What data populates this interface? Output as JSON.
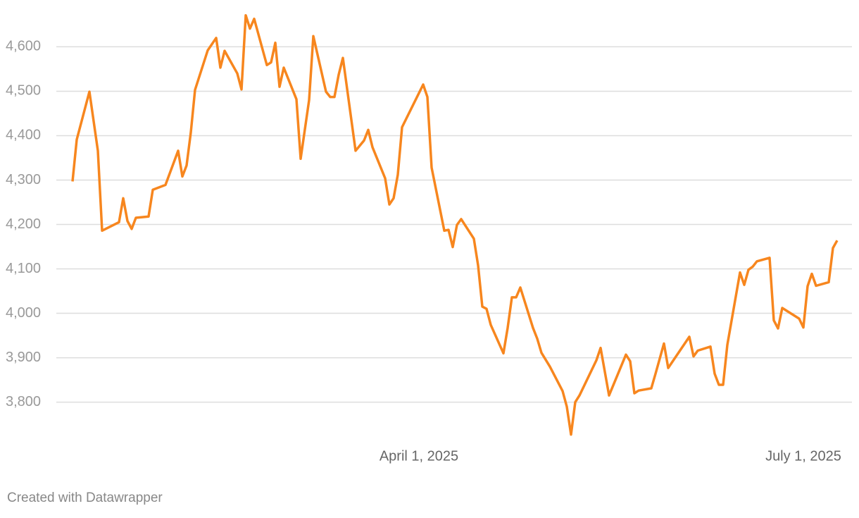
{
  "chart_data": {
    "type": "line",
    "footer": "Created with Datawrapper",
    "color": "#f7861e",
    "grid": true,
    "xlim": [
      "2025-01-07",
      "2025-07-13"
    ],
    "xticks": [
      {
        "value": "2025-04-01",
        "label": "April 1, 2025"
      },
      {
        "value": "2025-07-01",
        "label": "July 1, 2025"
      }
    ],
    "ylim": [
      3720,
      4680
    ],
    "yticks": [
      {
        "value": 3800,
        "label": "3,800"
      },
      {
        "value": 3900,
        "label": "3,900"
      },
      {
        "value": 4000,
        "label": "4,000"
      },
      {
        "value": 4100,
        "label": "4,100"
      },
      {
        "value": 4200,
        "label": "4,200"
      },
      {
        "value": 4300,
        "label": "4,300"
      },
      {
        "value": 4400,
        "label": "4,400"
      },
      {
        "value": 4500,
        "label": "4,500"
      },
      {
        "value": 4600,
        "label": "4,600"
      }
    ],
    "x": [
      "2025-01-09",
      "2025-01-10",
      "2025-01-13",
      "2025-01-15",
      "2025-01-16",
      "2025-01-20",
      "2025-01-21",
      "2025-01-22",
      "2025-01-23",
      "2025-01-24",
      "2025-01-27",
      "2025-01-28",
      "2025-01-31",
      "2025-02-03",
      "2025-02-04",
      "2025-02-05",
      "2025-02-06",
      "2025-02-07",
      "2025-02-10",
      "2025-02-12",
      "2025-02-13",
      "2025-02-14",
      "2025-02-17",
      "2025-02-18",
      "2025-02-19",
      "2025-02-20",
      "2025-02-21",
      "2025-02-24",
      "2025-02-25",
      "2025-02-26",
      "2025-02-27",
      "2025-02-28",
      "2025-03-03",
      "2025-03-04",
      "2025-03-06",
      "2025-03-07",
      "2025-03-10",
      "2025-03-11",
      "2025-03-12",
      "2025-03-13",
      "2025-03-14",
      "2025-03-17",
      "2025-03-19",
      "2025-03-20",
      "2025-03-21",
      "2025-03-24",
      "2025-03-25",
      "2025-03-26",
      "2025-03-27",
      "2025-03-28",
      "2025-04-02",
      "2025-04-03",
      "2025-04-04",
      "2025-04-07",
      "2025-04-08",
      "2025-04-09",
      "2025-04-10",
      "2025-04-11",
      "2025-04-14",
      "2025-04-15",
      "2025-04-16",
      "2025-04-17",
      "2025-04-18",
      "2025-04-21",
      "2025-04-22",
      "2025-04-23",
      "2025-04-24",
      "2025-04-25",
      "2025-04-28",
      "2025-04-29",
      "2025-04-30",
      "2025-05-02",
      "2025-05-05",
      "2025-05-06",
      "2025-05-07",
      "2025-05-08",
      "2025-05-09",
      "2025-05-13",
      "2025-05-14",
      "2025-05-16",
      "2025-05-20",
      "2025-05-21",
      "2025-05-22",
      "2025-05-23",
      "2025-05-26",
      "2025-05-27",
      "2025-05-29",
      "2025-05-30",
      "2025-06-04",
      "2025-06-05",
      "2025-06-06",
      "2025-06-09",
      "2025-06-10",
      "2025-06-11",
      "2025-06-12",
      "2025-06-13",
      "2025-06-16",
      "2025-06-17",
      "2025-06-18",
      "2025-06-19",
      "2025-06-20",
      "2025-06-23",
      "2025-06-24",
      "2025-06-25",
      "2025-06-26",
      "2025-06-30",
      "2025-07-01",
      "2025-07-02",
      "2025-07-03",
      "2025-07-04",
      "2025-07-07",
      "2025-07-08",
      "2025-07-09"
    ],
    "values": [
      4297,
      4391,
      4499,
      4366,
      4186,
      4205,
      4259,
      4208,
      4190,
      4215,
      4218,
      4278,
      4289,
      4366,
      4308,
      4333,
      4407,
      4503,
      4592,
      4620,
      4553,
      4591,
      4540,
      4504,
      4671,
      4641,
      4663,
      4559,
      4565,
      4609,
      4510,
      4553,
      4482,
      4348,
      4480,
      4624,
      4499,
      4487,
      4487,
      4537,
      4575,
      4366,
      4389,
      4413,
      4374,
      4304,
      4245,
      4259,
      4312,
      4419,
      4515,
      4487,
      4328,
      4186,
      4188,
      4149,
      4199,
      4212,
      4168,
      4108,
      4015,
      4010,
      3974,
      3910,
      3967,
      4036,
      4036,
      4058,
      3967,
      3943,
      3911,
      3880,
      3825,
      3790,
      3727,
      3800,
      3815,
      3894,
      3922,
      3815,
      3907,
      3892,
      3820,
      3826,
      3831,
      3864,
      3932,
      3877,
      3947,
      3903,
      3916,
      3925,
      3864,
      3839,
      3839,
      3929,
      4092,
      4064,
      4098,
      4105,
      4117,
      4125,
      3984,
      3966,
      4012,
      3988,
      3968,
      4061,
      4089,
      4062,
      4070,
      4147,
      4164
    ]
  }
}
